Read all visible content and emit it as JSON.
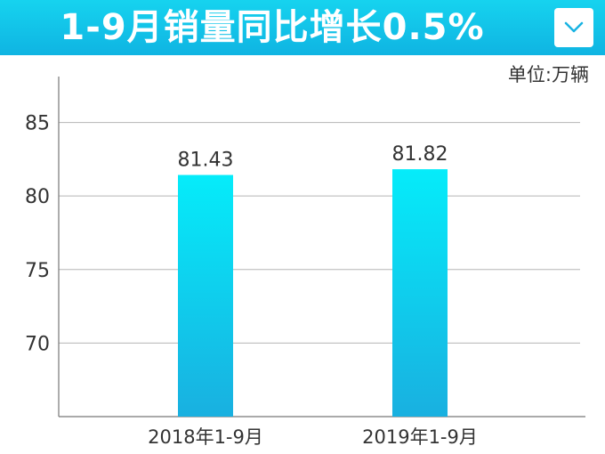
{
  "header": {
    "title": "1-9月销量同比增长0.5%",
    "icon": "chevron-down-icon",
    "background_colors": [
      "#16d3ef",
      "#0fb4e2"
    ]
  },
  "unit_label": "单位:万辆",
  "chart_data": {
    "type": "bar",
    "categories": [
      "2018年1-9月",
      "2019年1-9月"
    ],
    "values": [
      81.43,
      81.82
    ],
    "data_labels": [
      "81.43",
      "81.82"
    ],
    "y_ticks": [
      70,
      75,
      80,
      85
    ],
    "ylim": [
      65,
      88
    ],
    "grid": true,
    "bar_color_top": "#05ecfa",
    "bar_color_bottom": "#19b0e0"
  }
}
